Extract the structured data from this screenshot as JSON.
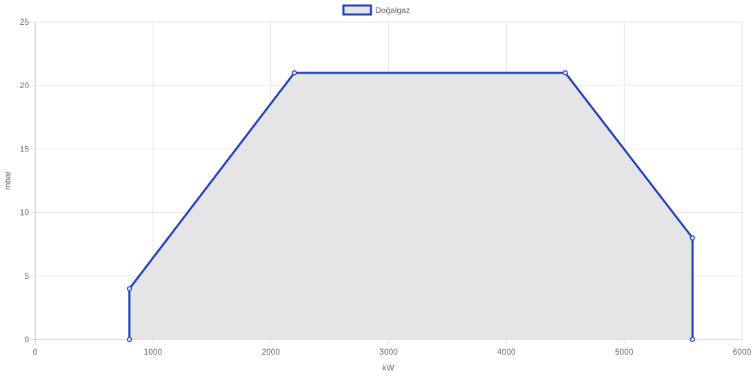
{
  "chart_data": {
    "type": "area",
    "xlabel": "kW",
    "ylabel": "mbar",
    "xlim": [
      0,
      6000
    ],
    "ylim": [
      0,
      25
    ],
    "x_ticks": [
      "0",
      "1000",
      "2000",
      "3000",
      "4000",
      "5000",
      "6000"
    ],
    "y_ticks": [
      "0",
      "5",
      "10",
      "15",
      "20",
      "25"
    ],
    "grid": true,
    "legend_position": "top-center",
    "series": [
      {
        "name": "Doğalgaz",
        "color": "#1f3fbf",
        "fill": "#e5e5e7",
        "points": [
          {
            "x": 800,
            "y": 0
          },
          {
            "x": 800,
            "y": 4
          },
          {
            "x": 2200,
            "y": 21
          },
          {
            "x": 4500,
            "y": 21
          },
          {
            "x": 5580,
            "y": 8
          },
          {
            "x": 5580,
            "y": 0
          }
        ]
      }
    ]
  }
}
